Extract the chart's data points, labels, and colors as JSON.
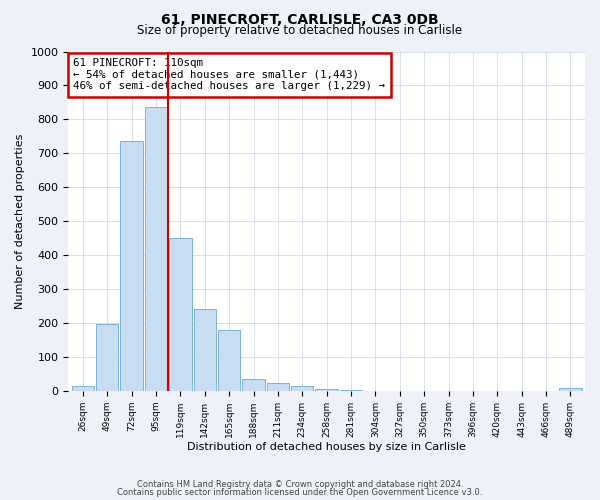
{
  "title": "61, PINECROFT, CARLISLE, CA3 0DB",
  "subtitle": "Size of property relative to detached houses in Carlisle",
  "xlabel": "Distribution of detached houses by size in Carlisle",
  "ylabel": "Number of detached properties",
  "bar_labels": [
    "26sqm",
    "49sqm",
    "72sqm",
    "95sqm",
    "119sqm",
    "142sqm",
    "165sqm",
    "188sqm",
    "211sqm",
    "234sqm",
    "258sqm",
    "281sqm",
    "304sqm",
    "327sqm",
    "350sqm",
    "373sqm",
    "396sqm",
    "420sqm",
    "443sqm",
    "466sqm",
    "489sqm"
  ],
  "bar_values": [
    15,
    197,
    735,
    835,
    450,
    240,
    178,
    35,
    22,
    15,
    5,
    3,
    0,
    0,
    0,
    0,
    0,
    0,
    0,
    0,
    8
  ],
  "bar_color": "#c9ddf2",
  "bar_edge_color": "#6aaad4",
  "vline_color": "#cc0000",
  "annotation_title": "61 PINECROFT: 110sqm",
  "annotation_line1": "← 54% of detached houses are smaller (1,443)",
  "annotation_line2": "46% of semi-detached houses are larger (1,229) →",
  "box_edge_color": "#cc0000",
  "ylim": [
    0,
    1000
  ],
  "yticks": [
    0,
    100,
    200,
    300,
    400,
    500,
    600,
    700,
    800,
    900,
    1000
  ],
  "footer1": "Contains HM Land Registry data © Crown copyright and database right 2024.",
  "footer2": "Contains public sector information licensed under the Open Government Licence v3.0.",
  "bg_color": "#eef2f8",
  "plot_bg_color": "#ffffff",
  "grid_color": "#c8d4e8"
}
